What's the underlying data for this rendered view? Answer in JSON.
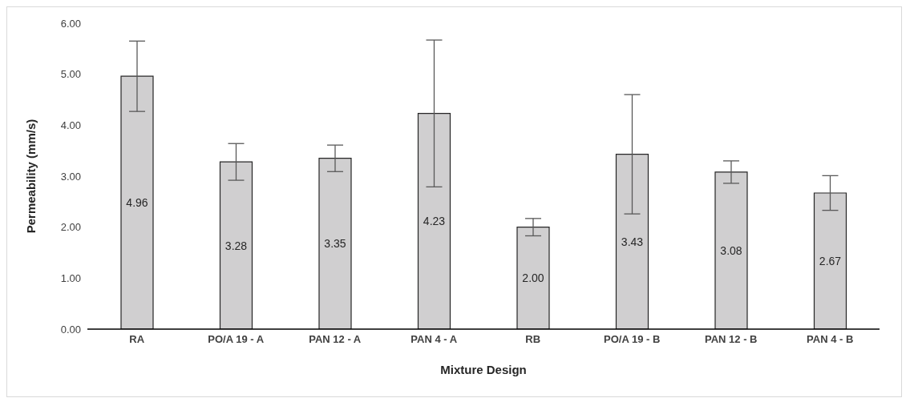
{
  "chart_data": {
    "type": "bar",
    "xlabel": "Mixture Design",
    "ylabel": "Permeability (mm/s)",
    "categories": [
      "RA",
      "PO/A 19 - A",
      "PAN 12 - A",
      "PAN 4 - A",
      "RB",
      "PO/A 19 - B",
      "PAN 12 - B",
      "PAN 4 - B"
    ],
    "values": [
      4.96,
      3.28,
      3.35,
      4.23,
      2.0,
      3.43,
      3.08,
      2.67
    ],
    "value_labels": [
      "4.96",
      "3.28",
      "3.35",
      "4.23",
      "2.00",
      "3.43",
      "3.08",
      "2.67"
    ],
    "errors": [
      0.69,
      0.36,
      0.26,
      1.44,
      0.17,
      1.17,
      0.22,
      0.34
    ],
    "color": "#d0cfd0",
    "ylim": [
      0,
      6
    ],
    "yticks": [
      {
        "value": 0,
        "label": "0.00"
      },
      {
        "value": 1,
        "label": "1.00"
      },
      {
        "value": 2,
        "label": "2.00"
      },
      {
        "value": 3,
        "label": "3.00"
      },
      {
        "value": 4,
        "label": "4.00"
      },
      {
        "value": 5,
        "label": "5.00"
      },
      {
        "value": 6,
        "label": "6.00"
      }
    ],
    "grid": false,
    "legend": false
  }
}
